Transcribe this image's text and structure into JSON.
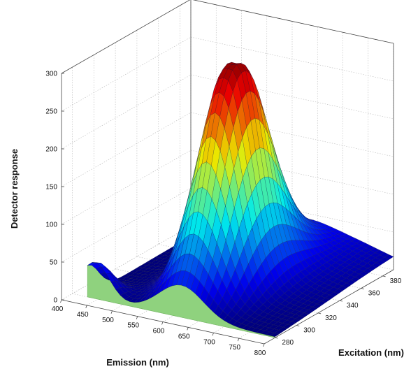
{
  "chart_data": {
    "type": "surface3d",
    "title": "",
    "xlabel": "Emission (nm)",
    "ylabel": "Excitation (nm)",
    "zlabel": "Detector response",
    "x_ticks": [
      400,
      450,
      500,
      550,
      600,
      650,
      700,
      750,
      800
    ],
    "y_ticks": [
      280,
      300,
      320,
      340,
      360,
      380
    ],
    "z_ticks": [
      0,
      50,
      100,
      150,
      200,
      250,
      300
    ],
    "xlim": [
      400,
      800
    ],
    "ylim": [
      270,
      390
    ],
    "zlim": [
      0,
      300
    ],
    "grid": true,
    "colormap": "jet",
    "green_profile_color": "#8fd27e",
    "surface": {
      "description_points": [
        {
          "emission": 440,
          "excitation": 280,
          "response": 52
        },
        {
          "emission": 500,
          "excitation": 280,
          "response": 20
        },
        {
          "emission": 650,
          "excitation": 280,
          "response": 4
        },
        {
          "emission": 560,
          "excitation": 300,
          "response": 150
        },
        {
          "emission": 600,
          "excitation": 320,
          "response": 270
        },
        {
          "emission": 590,
          "excitation": 330,
          "response": 300
        },
        {
          "emission": 640,
          "excitation": 330,
          "response": 300
        },
        {
          "emission": 700,
          "excitation": 340,
          "response": 120
        },
        {
          "emission": 800,
          "excitation": 380,
          "response": 35
        }
      ],
      "peak": {
        "emission": 615,
        "excitation": 330,
        "response": 303
      },
      "z_max": 305
    }
  }
}
